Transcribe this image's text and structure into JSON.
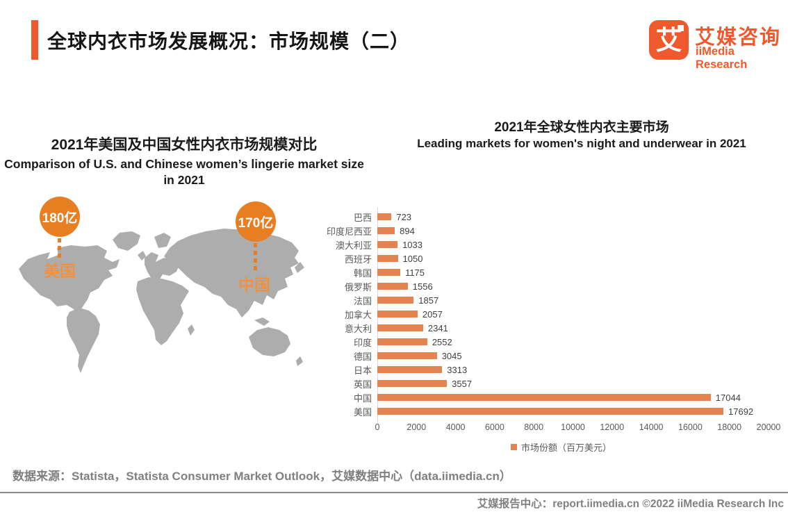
{
  "header": {
    "title": "全球内衣市场发展概况：市场规模（二）",
    "logo": {
      "icon_text": "艾",
      "name_zh": "艾媒咨询",
      "name_en": "iiMedia Research"
    }
  },
  "chart_data": [
    {
      "type": "pictorial",
      "subtype": "world-map-bubbles",
      "title": "2021年美国及中国女性内衣市场规模对比",
      "title_en": "Comparison of U.S. and Chinese women’s lingerie market size in 2021",
      "points": [
        {
          "label": "美国",
          "value": 180,
          "unit": "亿",
          "value_text": "180亿"
        },
        {
          "label": "中国",
          "value": 170,
          "unit": "亿",
          "value_text": "170亿"
        }
      ]
    },
    {
      "type": "bar",
      "orientation": "horizontal",
      "title": "2021年全球女性内衣主要市场",
      "title_en": "Leading markets for women's night and underwear in 2021",
      "categories": [
        "巴西",
        "印度尼西亚",
        "澳大利亚",
        "西班牙",
        "韩国",
        "俄罗斯",
        "法国",
        "加拿大",
        "意大利",
        "印度",
        "德国",
        "日本",
        "英国",
        "中国",
        "美国"
      ],
      "values": [
        723,
        894,
        1033,
        1050,
        1175,
        1556,
        1857,
        2057,
        2341,
        2552,
        3045,
        3313,
        3557,
        17044,
        17692
      ],
      "xlim": [
        0,
        20000
      ],
      "x_ticks": [
        0,
        2000,
        4000,
        6000,
        8000,
        10000,
        12000,
        14000,
        16000,
        18000,
        20000
      ],
      "legend": [
        "市场份额（百万美元）"
      ],
      "legend_position": "bottom",
      "bar_color": "#E28350",
      "grid": false
    }
  ],
  "source_note": "数据来源：Statista，Statista Consumer Market Outlook，艾媒数据中心（data.iimedia.cn）",
  "footer": {
    "text": "艾媒报告中心：report.iimedia.cn   ©2022   iiMedia Research Inc"
  },
  "colors": {
    "brand_orange": "#EE5A2D",
    "bubble_orange": "#E87E22",
    "country_label_orange": "#EE9143",
    "map_gray": "#ADADAD",
    "title_black": "#151515",
    "muted_gray": "#7F7F7F"
  }
}
